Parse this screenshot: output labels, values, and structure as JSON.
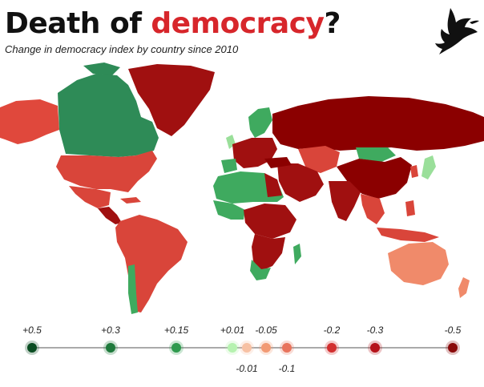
{
  "title": {
    "main": "Death of ",
    "accent": "democracy",
    "punct": "?"
  },
  "subtitle": "Change in democracy index by country since 2010",
  "logo": {
    "icon": "dove-icon"
  },
  "colors": {
    "accent": "#d7262b",
    "ocean": "#ffffff",
    "strong_gain": "#2e8b57",
    "mild_gain": "#3faa5f",
    "small_gain": "#9adf9a",
    "small_loss": "#f08a6a",
    "moderate_loss": "#d9453a",
    "strong_loss": "#a01010",
    "severe_loss": "#8b0000"
  },
  "legend": {
    "stops": [
      {
        "label": "+0.5",
        "value": 0.5,
        "color": "#0a4d22",
        "pos": "top"
      },
      {
        "label": "+0.3",
        "value": 0.3,
        "color": "#1f7a3c",
        "pos": "top"
      },
      {
        "label": "+0.15",
        "value": 0.15,
        "color": "#2e9a4e",
        "pos": "top"
      },
      {
        "label": "+0.01",
        "value": 0.01,
        "color": "#b6f2b0",
        "pos": "top"
      },
      {
        "label": "-0.01",
        "value": -0.01,
        "color": "#f7c1a4",
        "pos": "bottom"
      },
      {
        "label": "-0.05",
        "value": -0.05,
        "color": "#f29a74",
        "pos": "top"
      },
      {
        "label": "-0.1",
        "value": -0.1,
        "color": "#e8735c",
        "pos": "bottom"
      },
      {
        "label": "-0.2",
        "value": -0.2,
        "color": "#d22f2f",
        "pos": "top"
      },
      {
        "label": "-0.3",
        "value": -0.3,
        "color": "#b5121a",
        "pos": "top"
      },
      {
        "label": "-0.5",
        "value": -0.5,
        "color": "#8a0a0a",
        "pos": "top"
      }
    ]
  },
  "map": {
    "regions": [
      {
        "name": "alaska",
        "color": "#e0483c"
      },
      {
        "name": "canada",
        "color": "#2e8b57"
      },
      {
        "name": "greenland",
        "color": "#a01010"
      },
      {
        "name": "usa",
        "color": "#d9453a"
      },
      {
        "name": "mexico",
        "color": "#d9453a"
      },
      {
        "name": "central-america",
        "color": "#a01010"
      },
      {
        "name": "south-america",
        "color": "#d9453a"
      },
      {
        "name": "europe",
        "color": "#a01010"
      },
      {
        "name": "scandinavia",
        "color": "#3faa5f"
      },
      {
        "name": "russia",
        "color": "#8b0000"
      },
      {
        "name": "central-asia",
        "color": "#d9453a"
      },
      {
        "name": "mongolia",
        "color": "#3faa5f"
      },
      {
        "name": "china",
        "color": "#8b0000"
      },
      {
        "name": "middle-east",
        "color": "#a01010"
      },
      {
        "name": "india",
        "color": "#a01010"
      },
      {
        "name": "southeast-asia",
        "color": "#d9453a"
      },
      {
        "name": "japan",
        "color": "#9adf9a"
      },
      {
        "name": "africa",
        "color": "#3faa5f"
      },
      {
        "name": "madagascar",
        "color": "#3faa5f"
      },
      {
        "name": "australia",
        "color": "#f08a6a"
      },
      {
        "name": "new-zealand",
        "color": "#f08a6a"
      }
    ]
  }
}
